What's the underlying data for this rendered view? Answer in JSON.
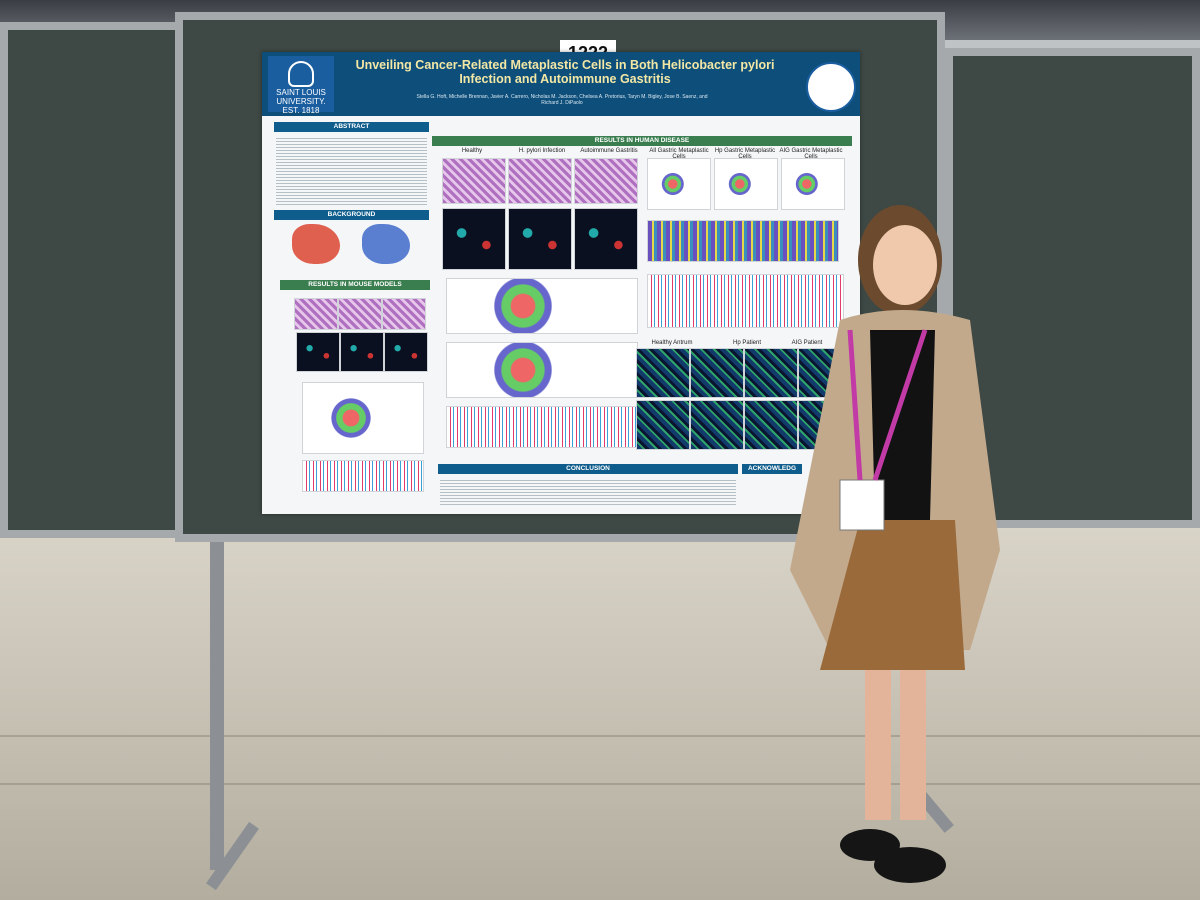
{
  "scene": {
    "poster_number": "1222",
    "colors": {
      "panel": "#3e4844",
      "header": "#0d4f7a",
      "title": "#f3e7a6",
      "floor": "#d9d4c8"
    }
  },
  "poster": {
    "institution_name": "SAINT LOUIS UNIVERSITY.",
    "institution_est": "EST. 1818",
    "title": "Unveiling Cancer-Related Metaplastic Cells in Both Helicobacter pylori Infection and Autoimmune Gastritis",
    "authors": "Stella G. Hoft, Michelle Brennan, Javier A. Carrero, Nicholas M. Jackson, Chelsea A. Pretorius, Taryn M. Bigley, Jose B. Saenz, and Richard J. DiPaolo",
    "sections": {
      "abstract": "ABSTRACT",
      "background": "BACKGROUND",
      "mouse": "RESULTS IN MOUSE MODELS",
      "human": "RESULTS IN HUMAN DISEASE",
      "conclusion": "CONCLUSION",
      "acknowledgements": "ACKNOWLEDG"
    },
    "panel_labels": {
      "healthy": "Healthy",
      "hp": "H. pylori Infection",
      "ag": "Autoimmune Gastritis",
      "all_gastric": "All Gastric Metaplastic Cells",
      "hp_gastric": "Hp Gastric Metaplastic Cells",
      "aig_gastric": "AIG Gastric Metaplastic Cells",
      "healthy_antrum": "Healthy Antrum",
      "hp_patient": "Hp Patient",
      "aig_patient": "AIG Patient"
    }
  }
}
